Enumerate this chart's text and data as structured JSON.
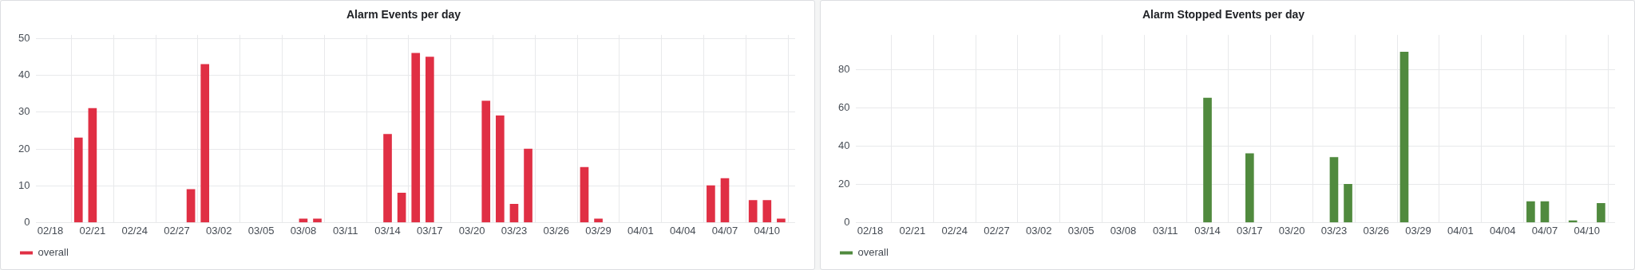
{
  "chart_data": [
    {
      "type": "bar",
      "title": "Alarm Events per day",
      "x": [
        "--02-20",
        "--02-21",
        "--02-28",
        "--03-01",
        "--03-08",
        "--03-09",
        "--03-14",
        "--03-15",
        "--03-16",
        "--03-17",
        "--03-21",
        "--03-22",
        "--03-23",
        "--03-24",
        "--03-28",
        "--03-29",
        "--04-06",
        "--04-07",
        "--04-09",
        "--04-10",
        "--04-11"
      ],
      "series": [
        {
          "name": "overall",
          "color": "#e02f44",
          "values": [
            23,
            31,
            9,
            43,
            1,
            1,
            24,
            8,
            46,
            45,
            33,
            29,
            5,
            20,
            15,
            1,
            10,
            12,
            6,
            6,
            1
          ]
        }
      ],
      "xlim": [
        "--02-17",
        "--04-12"
      ],
      "xticks": [
        {
          "value": "--02-18",
          "label": "02/18"
        },
        {
          "value": "--02-21",
          "label": "02/21"
        },
        {
          "value": "--02-24",
          "label": "02/24"
        },
        {
          "value": "--02-27",
          "label": "02/27"
        },
        {
          "value": "--03-02",
          "label": "03/02"
        },
        {
          "value": "--03-05",
          "label": "03/05"
        },
        {
          "value": "--03-08",
          "label": "03/08"
        },
        {
          "value": "--03-11",
          "label": "03/11"
        },
        {
          "value": "--03-14",
          "label": "03/14"
        },
        {
          "value": "--03-17",
          "label": "03/17"
        },
        {
          "value": "--03-20",
          "label": "03/20"
        },
        {
          "value": "--03-23",
          "label": "03/23"
        },
        {
          "value": "--03-26",
          "label": "03/26"
        },
        {
          "value": "--03-29",
          "label": "03/29"
        },
        {
          "value": "--04-01",
          "label": "04/01"
        },
        {
          "value": "--04-04",
          "label": "04/04"
        },
        {
          "value": "--04-07",
          "label": "04/07"
        },
        {
          "value": "--04-10",
          "label": "04/10"
        }
      ],
      "ylim": [
        0,
        51
      ],
      "yticks": [
        0,
        10,
        20,
        30,
        40,
        50
      ],
      "grid": true,
      "legend": "bottom left"
    },
    {
      "type": "bar",
      "title": "Alarm Stopped Events per day",
      "x": [
        "--03-14",
        "--03-17",
        "--03-23",
        "--03-24",
        "--03-28",
        "--04-06",
        "--04-07",
        "--04-09",
        "--04-11"
      ],
      "series": [
        {
          "name": "overall",
          "color": "#508a3e",
          "values": [
            65,
            36,
            34,
            20,
            89,
            11,
            11,
            1,
            10
          ]
        }
      ],
      "xlim": [
        "--02-17",
        "--04-12"
      ],
      "xticks": [
        {
          "value": "--02-18",
          "label": "02/18"
        },
        {
          "value": "--02-21",
          "label": "02/21"
        },
        {
          "value": "--02-24",
          "label": "02/24"
        },
        {
          "value": "--02-27",
          "label": "02/27"
        },
        {
          "value": "--03-02",
          "label": "03/02"
        },
        {
          "value": "--03-05",
          "label": "03/05"
        },
        {
          "value": "--03-08",
          "label": "03/08"
        },
        {
          "value": "--03-11",
          "label": "03/11"
        },
        {
          "value": "--03-14",
          "label": "03/14"
        },
        {
          "value": "--03-17",
          "label": "03/17"
        },
        {
          "value": "--03-20",
          "label": "03/20"
        },
        {
          "value": "--03-23",
          "label": "03/23"
        },
        {
          "value": "--03-26",
          "label": "03/26"
        },
        {
          "value": "--03-29",
          "label": "03/29"
        },
        {
          "value": "--04-01",
          "label": "04/01"
        },
        {
          "value": "--04-04",
          "label": "04/04"
        },
        {
          "value": "--04-07",
          "label": "04/07"
        },
        {
          "value": "--04-10",
          "label": "04/10"
        }
      ],
      "ylim": [
        0,
        98
      ],
      "yticks": [
        0,
        20,
        40,
        60,
        80
      ],
      "grid": true,
      "legend": "bottom left"
    }
  ]
}
